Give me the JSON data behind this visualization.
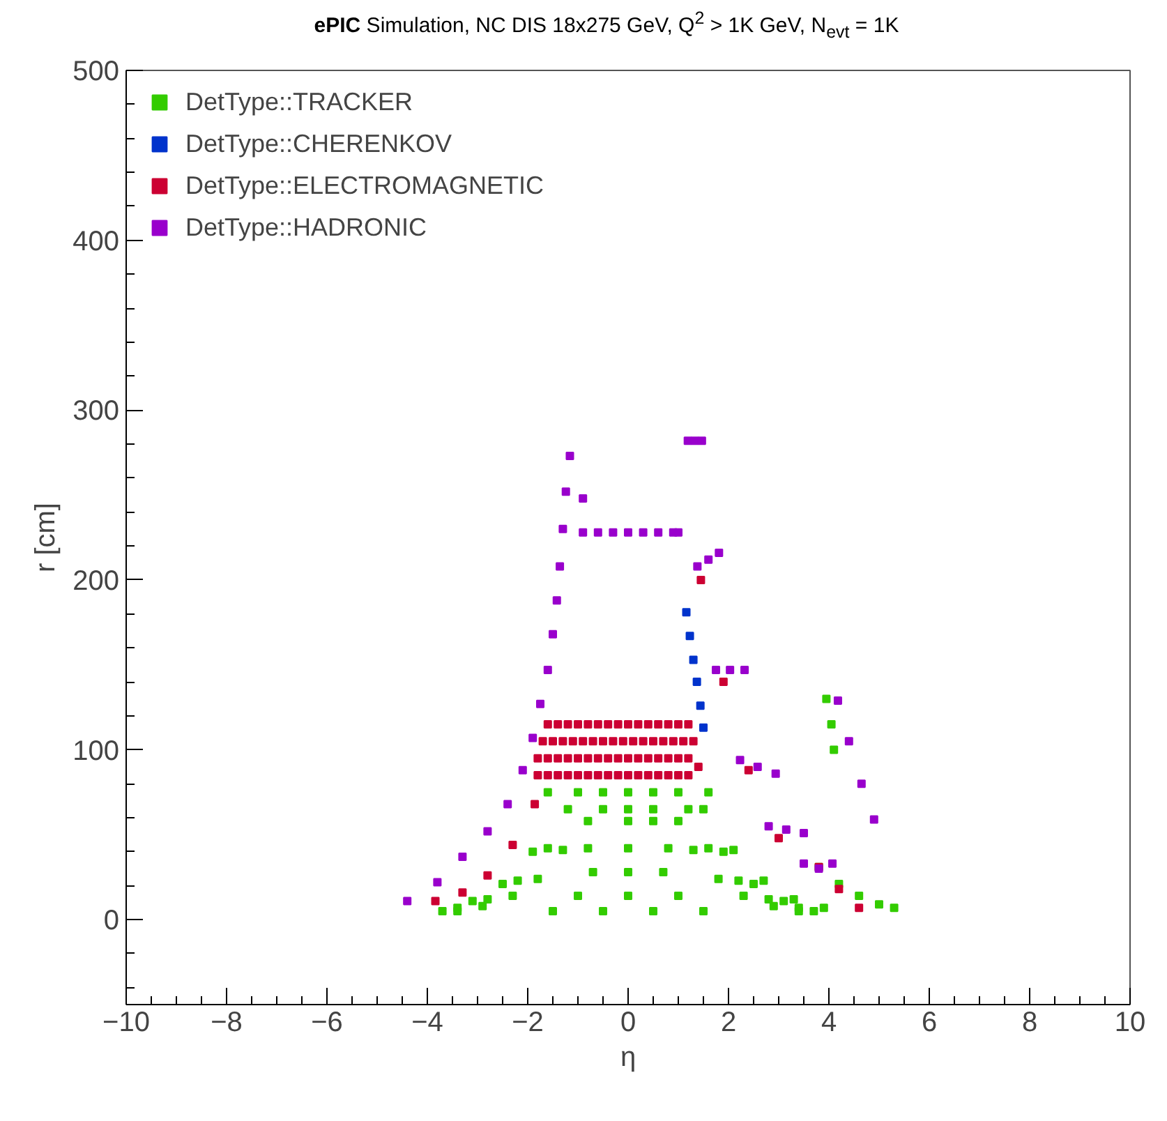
{
  "chart_data": {
    "type": "scatter",
    "title": "ePIC Simulation, NC DIS 18x275 GeV, Q$^{2}$ > 1K GeV, N$_{evt}$ = 1K",
    "xlabel": "η",
    "ylabel": "r [cm]",
    "xlim": [
      -10,
      10
    ],
    "ylim": [
      -50,
      500
    ],
    "xticks": [
      -10,
      -8,
      -6,
      -4,
      -2,
      0,
      2,
      4,
      6,
      8,
      10
    ],
    "yticks": [
      0,
      100,
      200,
      300,
      400,
      500
    ],
    "grid": false,
    "legend": "top left",
    "marker": "square",
    "series": [
      {
        "name": "DetType::TRACKER",
        "color": "#33cc00",
        "x": [
          -1.6,
          -1.0,
          -0.5,
          0.0,
          0.5,
          1.0,
          1.6,
          -1.2,
          -0.5,
          0.0,
          0.5,
          1.2,
          1.5,
          -0.8,
          0.0,
          0.5,
          1.0,
          -0.8,
          0.0,
          0.8,
          -0.7,
          0.0,
          0.7,
          -1.0,
          0.0,
          1.0,
          -1.5,
          -0.5,
          0.5,
          1.5,
          -1.3,
          -1.8,
          -2.3,
          -2.9,
          -3.4,
          -1.6,
          -2.2,
          -2.8,
          -3.4,
          -1.9,
          -2.5,
          -3.1,
          -3.7,
          1.3,
          1.8,
          2.3,
          2.9,
          3.4,
          1.6,
          2.2,
          2.8,
          3.4,
          1.9,
          2.5,
          3.1,
          3.7,
          2.1,
          2.7,
          3.3,
          3.9,
          3.8,
          4.2,
          4.6,
          5.0,
          5.3,
          3.95,
          4.05,
          4.1
        ],
        "values": [
          75,
          75,
          75,
          75,
          75,
          75,
          75,
          65,
          65,
          65,
          65,
          65,
          65,
          58,
          58,
          58,
          58,
          42,
          42,
          42,
          28,
          28,
          28,
          14,
          14,
          14,
          5,
          5,
          5,
          5,
          41,
          24,
          14,
          8,
          5,
          42,
          23,
          12,
          7,
          40,
          21,
          11,
          5,
          41,
          24,
          14,
          8,
          5,
          42,
          23,
          12,
          7,
          40,
          21,
          11,
          5,
          41,
          23,
          12,
          7,
          31,
          21,
          14,
          9,
          7,
          130,
          115,
          100
        ]
      },
      {
        "name": "DetType::CHERENKOV",
        "color": "#0033cc",
        "x": [
          1.16,
          1.23,
          1.3,
          1.37,
          1.44,
          1.5
        ],
        "values": [
          181,
          167,
          153,
          140,
          126,
          113
        ]
      },
      {
        "name": "DetType::ELECTROMAGNETIC",
        "color": "#cc0033",
        "x": [
          -1.8,
          -1.6,
          -1.4,
          -1.2,
          -1.0,
          -0.8,
          -0.6,
          -0.4,
          -0.2,
          0.0,
          0.2,
          0.4,
          0.6,
          0.8,
          1.0,
          1.2,
          -1.8,
          -1.6,
          -1.4,
          -1.2,
          -1.0,
          -0.8,
          -0.6,
          -0.4,
          -0.2,
          0.0,
          0.2,
          0.4,
          0.6,
          0.8,
          1.0,
          1.2,
          1.4,
          -1.7,
          -1.5,
          -1.3,
          -1.1,
          -0.9,
          -0.7,
          -0.5,
          -0.3,
          -0.1,
          0.1,
          0.3,
          0.5,
          0.7,
          0.9,
          1.1,
          1.3,
          -1.6,
          -1.4,
          -1.2,
          -1.0,
          -0.8,
          -0.6,
          -0.4,
          -0.2,
          0.0,
          0.2,
          0.4,
          0.6,
          0.8,
          1.0,
          1.2,
          -1.86,
          -2.3,
          -2.8,
          -3.3,
          -3.84,
          1.45,
          1.9,
          2.4,
          3.0,
          3.8,
          4.2,
          4.6
        ],
        "values": [
          85,
          85,
          85,
          85,
          85,
          85,
          85,
          85,
          85,
          85,
          85,
          85,
          85,
          85,
          85,
          85,
          95,
          95,
          95,
          95,
          95,
          95,
          95,
          95,
          95,
          95,
          95,
          95,
          95,
          95,
          95,
          95,
          90,
          105,
          105,
          105,
          105,
          105,
          105,
          105,
          105,
          105,
          105,
          105,
          105,
          105,
          105,
          105,
          105,
          115,
          115,
          115,
          115,
          115,
          115,
          115,
          115,
          115,
          115,
          115,
          115,
          115,
          115,
          115,
          68,
          44,
          26,
          16,
          11,
          200,
          140,
          88,
          48,
          31,
          18,
          7
        ]
      },
      {
        "name": "DetType::HADRONIC",
        "color": "#9900cc",
        "x": [
          -4.4,
          -3.8,
          -3.3,
          -2.8,
          -2.4,
          -2.1,
          -1.9,
          -1.75,
          -1.6,
          -1.5,
          -1.42,
          -1.36,
          -1.3,
          -1.24,
          -1.16,
          -0.9,
          -0.9,
          -0.6,
          -0.3,
          0.0,
          0.3,
          0.6,
          0.9,
          1.0,
          1.19,
          1.38,
          1.75,
          2.23,
          2.8,
          3.5,
          1.47,
          1.81,
          2.32,
          2.94,
          3.5,
          4.07,
          1.33,
          1.6,
          2.03,
          2.58,
          3.15,
          3.8,
          4.18,
          4.4,
          4.65,
          4.9
        ],
        "values": [
          11,
          22,
          37,
          52,
          68,
          88,
          107,
          127,
          147,
          168,
          188,
          208,
          230,
          252,
          273,
          248,
          228,
          228,
          228,
          228,
          228,
          228,
          228,
          228,
          282,
          208,
          147,
          94,
          55,
          33,
          282,
          216,
          147,
          86,
          51,
          33,
          282,
          212,
          147,
          90,
          53,
          30,
          129,
          105,
          80,
          59
        ]
      }
    ]
  }
}
